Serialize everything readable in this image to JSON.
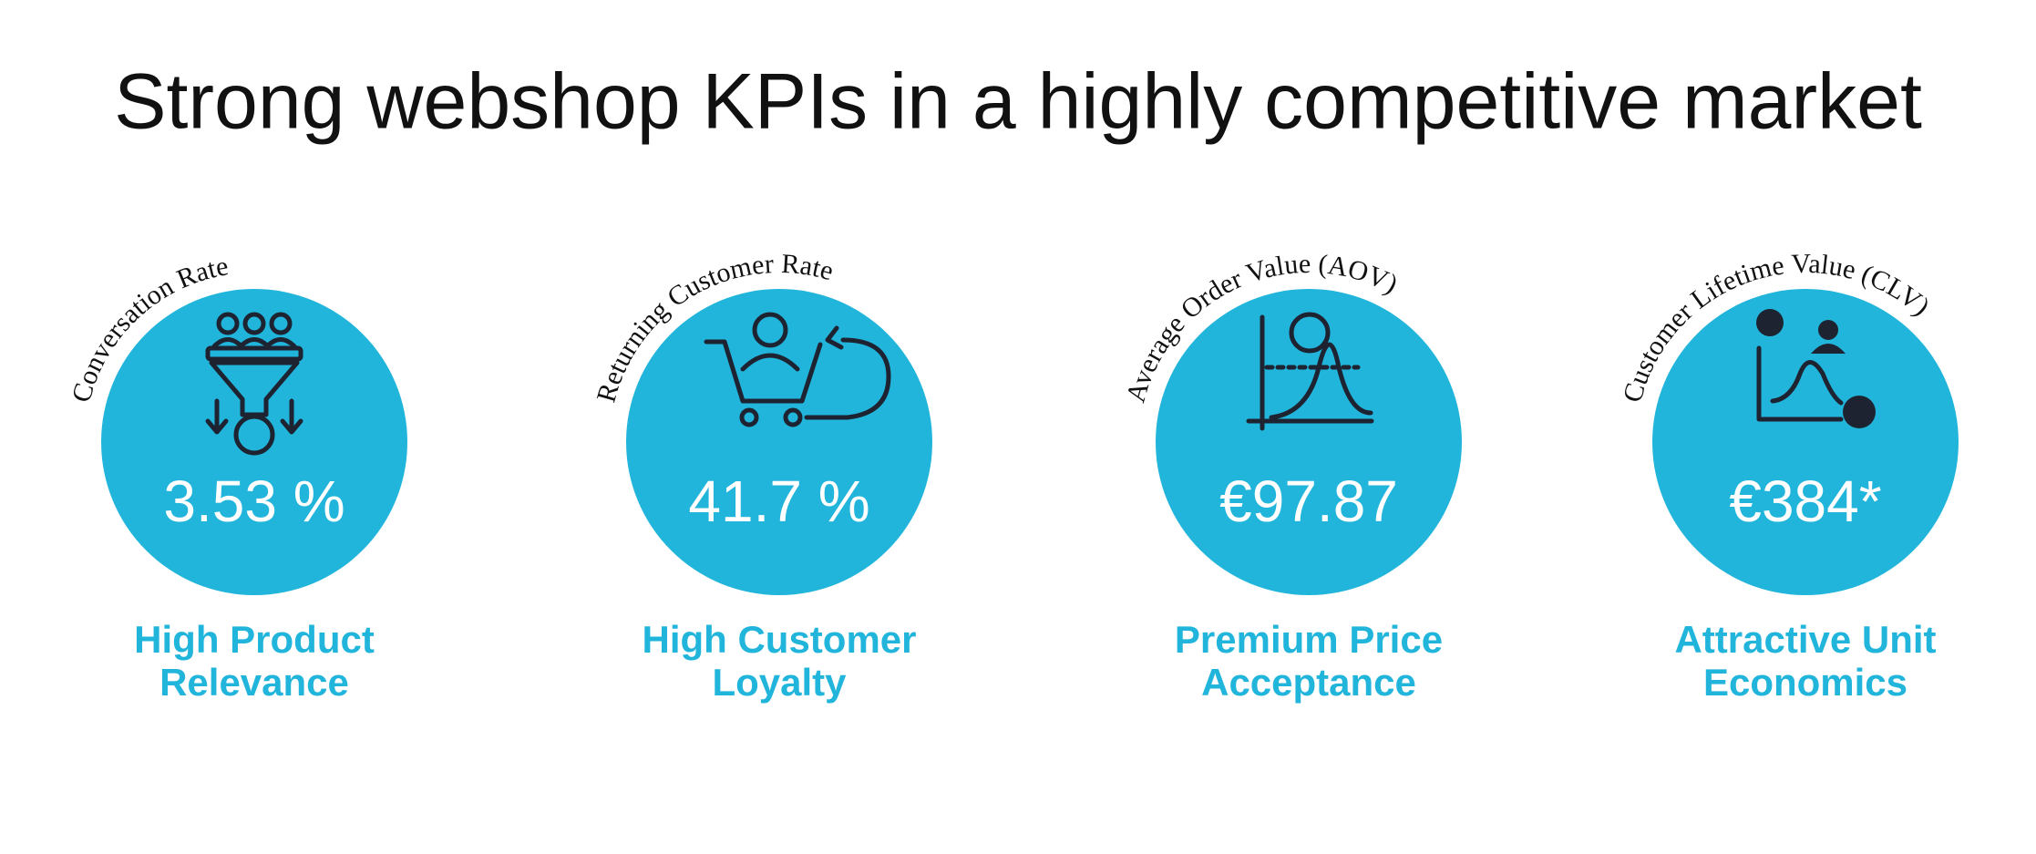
{
  "title": "Strong webshop KPIs in a highly competitive market",
  "kpis": [
    {
      "arc_label": "Conversation Rate",
      "value": "3.53 %",
      "caption": [
        "High Product",
        "Relevance"
      ]
    },
    {
      "arc_label": "Returning Customer Rate",
      "value": "41.7 %",
      "caption": [
        "High Customer",
        "Loyalty"
      ]
    },
    {
      "arc_label": "Average Order Value (AOV)",
      "value": "€97.87",
      "caption": [
        "Premium Price",
        "Acceptance"
      ]
    },
    {
      "arc_label": "Customer Lifetime Value (CLV)",
      "value": "€384*",
      "caption": [
        "Attractive Unit",
        "Economics"
      ]
    }
  ]
}
